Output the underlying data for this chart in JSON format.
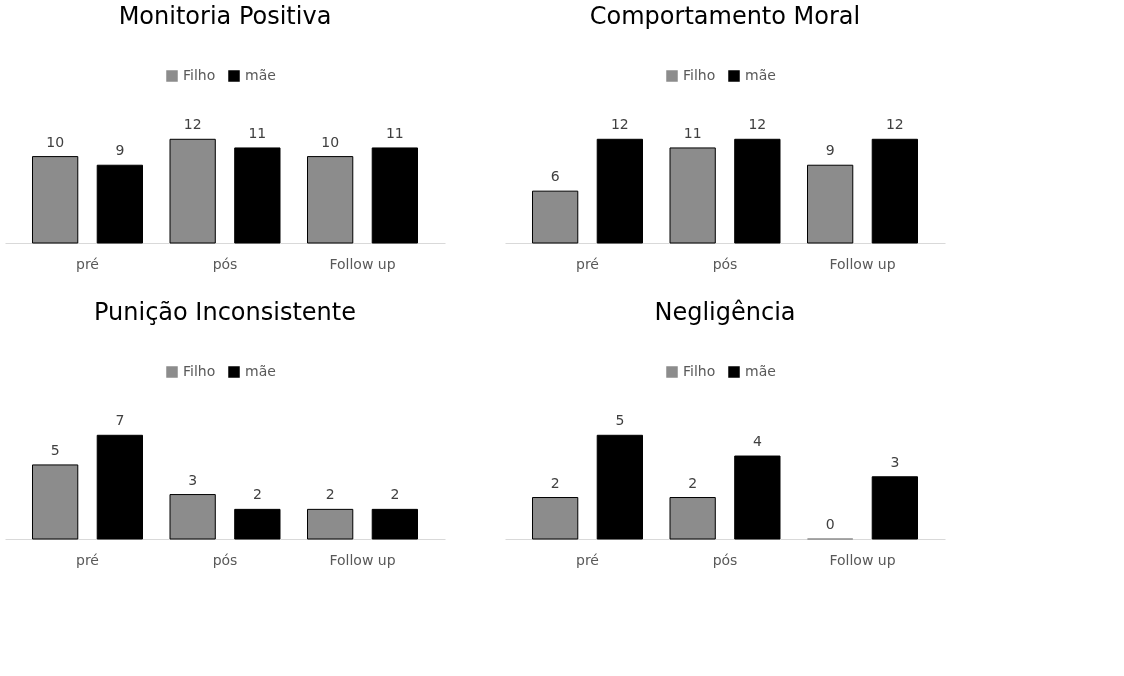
{
  "chart_data": [
    {
      "type": "bar",
      "title": "Monitoria Positiva",
      "categories": [
        "pré",
        "pós",
        "Follow up"
      ],
      "legend": "top",
      "data_labels": true,
      "series": [
        {
          "name": "Filho",
          "color": "#8c8c8c",
          "values": [
            10,
            12,
            10
          ]
        },
        {
          "name": "mãe",
          "color": "#000000",
          "values": [
            9,
            11,
            11
          ]
        }
      ]
    },
    {
      "type": "bar",
      "title": "Comportamento Moral",
      "categories": [
        "pré",
        "pós",
        "Follow up"
      ],
      "legend": "top",
      "data_labels": true,
      "series": [
        {
          "name": "Filho",
          "color": "#8c8c8c",
          "values": [
            6,
            11,
            9
          ]
        },
        {
          "name": "mãe",
          "color": "#000000",
          "values": [
            12,
            12,
            12
          ]
        }
      ]
    },
    {
      "type": "bar",
      "title": "Punição Inconsistente",
      "categories": [
        "pré",
        "pós",
        "Follow up"
      ],
      "legend": "top",
      "data_labels": true,
      "series": [
        {
          "name": "Filho",
          "color": "#8c8c8c",
          "values": [
            5,
            3,
            2
          ]
        },
        {
          "name": "mãe",
          "color": "#000000",
          "values": [
            7,
            2,
            2
          ]
        }
      ]
    },
    {
      "type": "bar",
      "title": "Negligência",
      "categories": [
        "pré",
        "pós",
        "Follow up"
      ],
      "legend": "top",
      "data_labels": true,
      "series": [
        {
          "name": "Filho",
          "color": "#8c8c8c",
          "values": [
            2,
            2,
            0
          ]
        },
        {
          "name": "mãe",
          "color": "#000000",
          "values": [
            5,
            4,
            3
          ]
        }
      ]
    }
  ]
}
